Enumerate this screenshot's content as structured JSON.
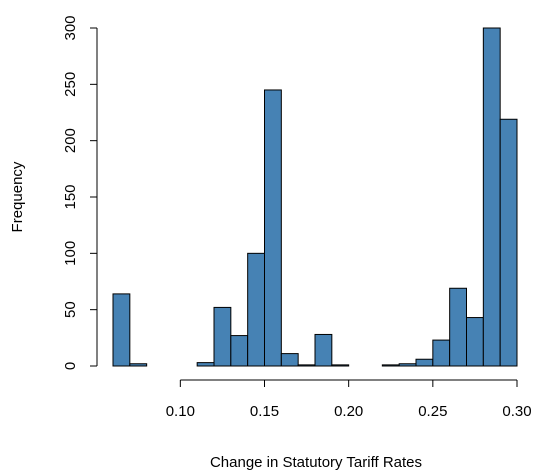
{
  "colors": {
    "bar_fill": "#4682B4",
    "bar_stroke": "#000000"
  },
  "chart_data": {
    "type": "bar",
    "title": "",
    "xlabel": "Change in Statutory Tariff Rates",
    "ylabel": "Frequency",
    "xlim": [
      0.06,
      0.3
    ],
    "ylim": [
      0,
      300
    ],
    "xticks": [
      0.1,
      0.15,
      0.2,
      0.25,
      0.3
    ],
    "xtick_labels": [
      "0.10",
      "0.15",
      "0.20",
      "0.25",
      "0.30"
    ],
    "yticks": [
      0,
      50,
      100,
      150,
      200,
      250,
      300
    ],
    "ytick_labels": [
      "0",
      "50",
      "100",
      "150",
      "200",
      "250",
      "300"
    ],
    "bin_edges": [
      0.06,
      0.07,
      0.08,
      0.09,
      0.1,
      0.11,
      0.12,
      0.13,
      0.14,
      0.15,
      0.16,
      0.17,
      0.18,
      0.19,
      0.2,
      0.21,
      0.22,
      0.23,
      0.24,
      0.25,
      0.26,
      0.27,
      0.28,
      0.29,
      0.3
    ],
    "values": [
      64,
      2,
      0,
      0,
      0,
      3,
      52,
      27,
      100,
      245,
      11,
      1,
      28,
      1,
      0,
      0,
      1,
      2,
      6,
      23,
      69,
      43,
      300,
      219
    ]
  }
}
